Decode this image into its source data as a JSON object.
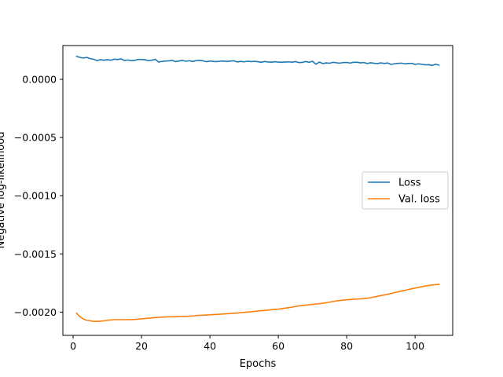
{
  "chart_data": {
    "type": "line",
    "title": "",
    "xlabel": "Epochs",
    "ylabel": "Negative log-likelihood",
    "xlim": [
      -3,
      111
    ],
    "ylim": [
      -0.0022,
      0.00029
    ],
    "xticks": [
      0,
      20,
      40,
      60,
      80,
      100
    ],
    "xtick_labels": [
      "0",
      "20",
      "40",
      "60",
      "80",
      "100"
    ],
    "yticks": [
      0.0,
      -0.0005,
      -0.001,
      -0.0015,
      -0.002
    ],
    "ytick_labels": [
      "0.0000",
      "−0.0005",
      "−0.0010",
      "−0.0015",
      "−0.0020"
    ],
    "grid": false,
    "legend_position": "center-right",
    "colors": {
      "Loss": "#1f77b4",
      "Val. loss": "#ff7f0e"
    },
    "x": [
      1,
      2,
      3,
      4,
      5,
      6,
      7,
      8,
      9,
      10,
      11,
      12,
      13,
      14,
      15,
      16,
      17,
      18,
      19,
      20,
      21,
      22,
      23,
      24,
      25,
      26,
      27,
      28,
      29,
      30,
      31,
      32,
      33,
      34,
      35,
      36,
      37,
      38,
      39,
      40,
      41,
      42,
      43,
      44,
      45,
      46,
      47,
      48,
      49,
      50,
      51,
      52,
      53,
      54,
      55,
      56,
      57,
      58,
      59,
      60,
      61,
      62,
      63,
      64,
      65,
      66,
      67,
      68,
      69,
      70,
      71,
      72,
      73,
      74,
      75,
      76,
      77,
      78,
      79,
      80,
      81,
      82,
      83,
      84,
      85,
      86,
      87,
      88,
      89,
      90,
      91,
      92,
      93,
      94,
      95,
      96,
      97,
      98,
      99,
      100,
      101,
      102,
      103,
      104,
      105,
      106,
      107
    ],
    "series": [
      {
        "name": "Loss",
        "values": [
          0.000198,
          0.000188,
          0.000183,
          0.000188,
          0.000178,
          0.000172,
          0.000161,
          0.000169,
          0.000164,
          0.000169,
          0.000164,
          0.000173,
          0.00017,
          0.000176,
          0.000162,
          0.000166,
          0.00016,
          0.000163,
          0.000171,
          0.00017,
          0.000168,
          0.00016,
          0.000164,
          0.000172,
          0.000148,
          0.000154,
          0.000157,
          0.000159,
          0.000163,
          0.000152,
          0.000158,
          0.000162,
          0.000155,
          0.00016,
          0.000153,
          0.000161,
          0.000163,
          0.000159,
          0.000151,
          0.000157,
          0.000154,
          0.000152,
          0.000156,
          0.000157,
          0.000153,
          0.000157,
          0.000159,
          0.000149,
          0.000154,
          0.00015,
          0.000156,
          0.000152,
          0.000155,
          0.000151,
          0.000146,
          0.000153,
          0.000149,
          0.000147,
          0.000151,
          0.000148,
          0.000146,
          0.000149,
          0.00015,
          0.000147,
          0.000152,
          0.000144,
          0.000145,
          0.000153,
          0.000146,
          0.000155,
          0.00013,
          0.000148,
          0.000135,
          0.000141,
          0.000138,
          0.000146,
          0.000142,
          0.000139,
          0.000144,
          0.000145,
          0.00014,
          0.000146,
          0.000147,
          0.000141,
          0.000144,
          0.000136,
          0.000142,
          0.000138,
          0.000135,
          0.000141,
          0.000136,
          0.00014,
          0.000128,
          0.000134,
          0.000137,
          0.000139,
          0.000133,
          0.000136,
          0.000137,
          0.000128,
          0.000133,
          0.000129,
          0.000124,
          0.000126,
          0.000119,
          0.00013,
          0.000122
        ]
      },
      {
        "name": "Val. loss",
        "values": [
          -0.00201,
          -0.00204,
          -0.00206,
          -0.00207,
          -0.002075,
          -0.00208,
          -0.00208,
          -0.002078,
          -0.002075,
          -0.00207,
          -0.002068,
          -0.002065,
          -0.002065,
          -0.002065,
          -0.002065,
          -0.002065,
          -0.002065,
          -0.002063,
          -0.00206,
          -0.002058,
          -0.002055,
          -0.002052,
          -0.00205,
          -0.002047,
          -0.002045,
          -0.002043,
          -0.002042,
          -0.00204,
          -0.00204,
          -0.002039,
          -0.002038,
          -0.002037,
          -0.002036,
          -0.002035,
          -0.002033,
          -0.00203,
          -0.002028,
          -0.002027,
          -0.002025,
          -0.002023,
          -0.002021,
          -0.00202,
          -0.002018,
          -0.002016,
          -0.002014,
          -0.002012,
          -0.00201,
          -0.002008,
          -0.002005,
          -0.002002,
          -0.002,
          -0.001997,
          -0.001994,
          -0.001991,
          -0.001988,
          -0.001986,
          -0.001983,
          -0.00198,
          -0.001977,
          -0.001974,
          -0.00197,
          -0.001966,
          -0.001962,
          -0.001957,
          -0.001952,
          -0.001947,
          -0.001943,
          -0.00194,
          -0.001937,
          -0.001934,
          -0.001931,
          -0.001928,
          -0.001924,
          -0.001919,
          -0.001914,
          -0.001909,
          -0.001904,
          -0.0019,
          -0.001897,
          -0.001894,
          -0.001892,
          -0.00189,
          -0.001888,
          -0.001886,
          -0.001884,
          -0.001881,
          -0.001876,
          -0.00187,
          -0.001864,
          -0.001858,
          -0.001853,
          -0.001847,
          -0.00184,
          -0.001833,
          -0.001826,
          -0.00182,
          -0.001813,
          -0.001806,
          -0.0018,
          -0.001794,
          -0.001788,
          -0.001782,
          -0.001776,
          -0.001771,
          -0.001767,
          -0.001764,
          -0.001762
        ]
      }
    ]
  }
}
